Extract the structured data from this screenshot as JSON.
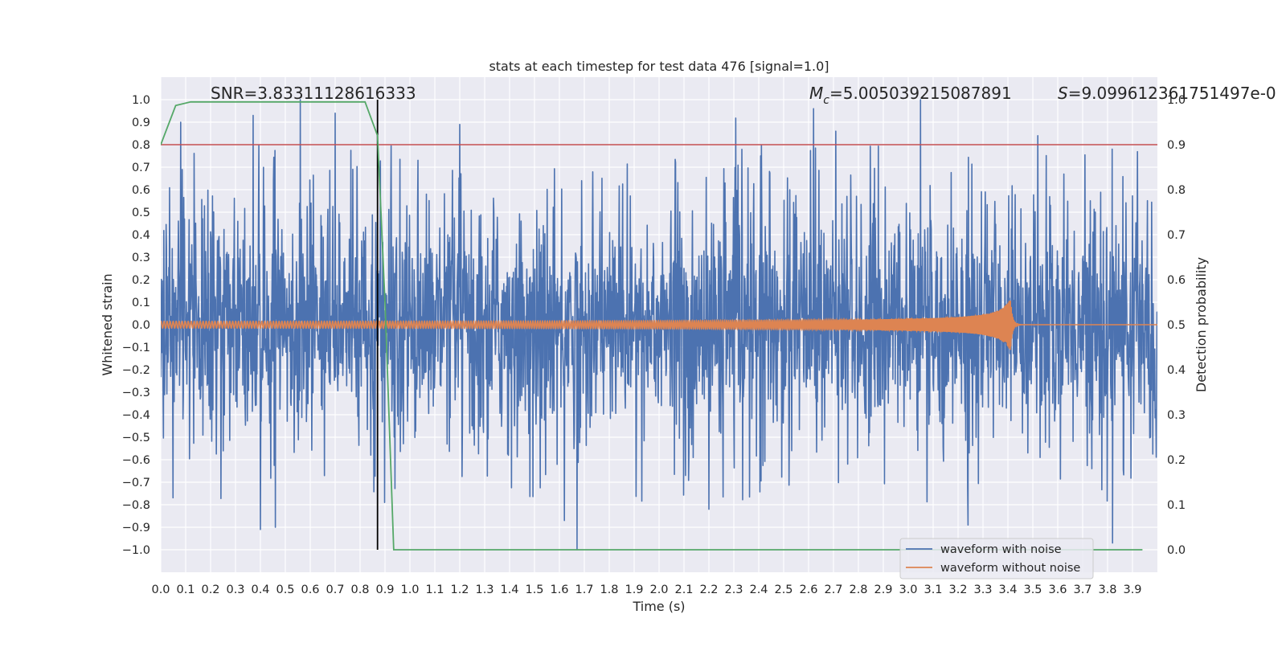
{
  "chart_data": {
    "type": "line",
    "title": "stats at each timestep for test data 476 [signal=1.0]",
    "xlabel": "Time (s)",
    "ylabel": "Whitened strain",
    "y2label": "Detection probability",
    "xlim": [
      0.0,
      4.0
    ],
    "ylim": [
      -1.1,
      1.1
    ],
    "y2lim": [
      -0.05,
      1.05
    ],
    "xticks": [
      0.0,
      0.1,
      0.2,
      0.3,
      0.4,
      0.5,
      0.6,
      0.7,
      0.8,
      0.9,
      1.0,
      1.1,
      1.2,
      1.3,
      1.4,
      1.5,
      1.6,
      1.7,
      1.8,
      1.9,
      2.0,
      2.1,
      2.2,
      2.3,
      2.4,
      2.5,
      2.6,
      2.7,
      2.8,
      2.9,
      3.0,
      3.1,
      3.2,
      3.3,
      3.4,
      3.5,
      3.6,
      3.7,
      3.8,
      3.9
    ],
    "xtick_labels": [
      "0.0",
      "0.1",
      "0.2",
      "0.3",
      "0.4",
      "0.5",
      "0.6",
      "0.7",
      "0.8",
      "0.9",
      "1.0",
      "1.1",
      "1.2",
      "1.3",
      "1.4",
      "1.5",
      "1.6",
      "1.7",
      "1.8",
      "1.9",
      "2.0",
      "2.1",
      "2.2",
      "2.3",
      "2.4",
      "2.5",
      "2.6",
      "2.7",
      "2.8",
      "2.9",
      "3.0",
      "3.1",
      "3.2",
      "3.3",
      "3.4",
      "3.5",
      "3.6",
      "3.7",
      "3.8",
      "3.9"
    ],
    "yticks": [
      1.0,
      0.9,
      0.8,
      0.7,
      0.6,
      0.5,
      0.4,
      0.3,
      0.2,
      0.1,
      0.0,
      -0.1,
      -0.2,
      -0.3,
      -0.4,
      -0.5,
      -0.6,
      -0.7,
      -0.8,
      -0.9,
      -1.0
    ],
    "ytick_labels": [
      "1.0",
      "0.9",
      "0.8",
      "0.7",
      "0.6",
      "0.5",
      "0.4",
      "0.3",
      "0.2",
      "0.1",
      "0.0",
      "−0.1",
      "−0.2",
      "−0.3",
      "−0.4",
      "−0.5",
      "−0.6",
      "−0.7",
      "−0.8",
      "−0.9",
      "−1.0"
    ],
    "y2ticks": [
      1.0,
      0.9,
      0.8,
      0.7,
      0.6,
      0.5,
      0.4,
      0.3,
      0.2,
      0.1,
      0.0
    ],
    "y2tick_labels": [
      "1.0",
      "0.9",
      "0.8",
      "0.7",
      "0.6",
      "0.5",
      "0.4",
      "0.3",
      "0.2",
      "0.1",
      "0.0"
    ],
    "grid": true,
    "legend": {
      "placement": "lower-right",
      "entries": [
        "waveform with noise",
        "waveform without noise"
      ]
    },
    "annotations": {
      "snr": "SNR=3.83311128616333",
      "mc_symbol": "M",
      "mc_subscript": "c",
      "mc_value": "=5.005039215087891",
      "s_symbol": "S",
      "s_value": "=9.099612361751497e-0"
    },
    "series": [
      {
        "name": "waveform with noise",
        "axis": "left",
        "color": "#4c72b0",
        "description": "noisy whitened strain, dense oscillation roughly between -1.0 and 1.0",
        "t_start": 0.0,
        "t_end": 4.0,
        "peak_extremes": [
          {
            "t": 0.08,
            "v": 0.9
          },
          {
            "t": 0.37,
            "v": 0.93
          },
          {
            "t": 0.4,
            "v": -0.91
          },
          {
            "t": 0.46,
            "v": -0.9
          },
          {
            "t": 0.56,
            "v": 1.0
          },
          {
            "t": 0.7,
            "v": 0.94
          },
          {
            "t": 1.2,
            "v": 0.89
          },
          {
            "t": 1.62,
            "v": -0.87
          },
          {
            "t": 1.67,
            "v": -1.0
          },
          {
            "t": 2.2,
            "v": -0.82
          },
          {
            "t": 2.62,
            "v": 0.96
          },
          {
            "t": 3.05,
            "v": 1.0
          },
          {
            "t": 3.24,
            "v": -0.89
          },
          {
            "t": 3.52,
            "v": 0.84
          },
          {
            "t": 3.82,
            "v": -0.97
          }
        ]
      },
      {
        "name": "waveform without noise",
        "axis": "left",
        "color": "#dd8452",
        "description": "chirp signal, amplitude ~0.01 growing to ~0.12 peak near t=3.41 s, then ringdown",
        "chirp_start_amplitude": 0.012,
        "chirp_peak_amplitude": 0.12,
        "merger_time": 3.41
      },
      {
        "name": "detection probability",
        "axis": "right",
        "color": "#55a868",
        "x": [
          0.0,
          0.06,
          0.12,
          0.2,
          0.3,
          0.4,
          0.5,
          0.6,
          0.7,
          0.8,
          0.82,
          0.87,
          0.9,
          0.935,
          1.0,
          1.5,
          2.0,
          2.5,
          3.0,
          3.5,
          3.94
        ],
        "y": [
          0.9,
          0.987,
          0.995,
          0.995,
          0.995,
          0.995,
          0.995,
          0.995,
          0.995,
          0.995,
          0.995,
          0.92,
          0.55,
          0.0,
          0.0,
          0.0,
          0.0,
          0.0,
          0.0,
          0.0,
          0.0
        ]
      }
    ],
    "reference_lines": [
      {
        "name": "threshold",
        "axis": "right",
        "orientation": "horizontal",
        "value": 0.9,
        "color": "#c44e52"
      },
      {
        "name": "detection-time",
        "axis": "left",
        "orientation": "vertical",
        "value": 0.87,
        "range": [
          -1.0,
          1.0
        ],
        "color": "#000000"
      }
    ]
  }
}
